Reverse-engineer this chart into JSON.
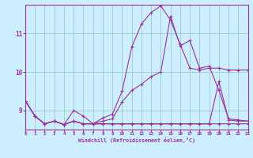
{
  "xlabel": "Windchill (Refroidissement éolien,°C)",
  "bg_color": "#cceeff",
  "grid_color": "#99cccc",
  "line_color": "#993399",
  "xlim": [
    0,
    23
  ],
  "ylim": [
    8.5,
    11.75
  ],
  "yticks": [
    9,
    10,
    11
  ],
  "xticks": [
    0,
    1,
    2,
    3,
    4,
    5,
    6,
    7,
    8,
    9,
    10,
    11,
    12,
    13,
    14,
    15,
    16,
    17,
    18,
    19,
    20,
    21,
    22,
    23
  ],
  "line1_x": [
    0,
    1,
    2,
    3,
    4,
    5,
    6,
    7,
    8,
    9,
    10,
    11,
    12,
    13,
    14,
    15,
    16,
    17,
    18,
    19,
    20,
    21,
    22,
    23
  ],
  "line1_y": [
    9.25,
    8.85,
    8.65,
    8.72,
    8.63,
    9.0,
    8.85,
    8.65,
    8.8,
    8.9,
    9.5,
    10.65,
    11.25,
    11.55,
    11.72,
    11.35,
    10.72,
    10.1,
    10.05,
    10.1,
    10.1,
    10.05,
    10.05,
    10.05
  ],
  "line2_x": [
    0,
    1,
    2,
    3,
    4,
    5,
    6,
    7,
    8,
    9,
    10,
    11,
    12,
    13,
    14,
    15,
    16,
    17,
    18,
    19,
    20,
    21,
    22,
    23
  ],
  "line2_y": [
    9.25,
    8.85,
    8.65,
    8.72,
    8.63,
    8.72,
    8.65,
    8.65,
    8.72,
    8.78,
    9.22,
    9.52,
    9.68,
    9.88,
    10.0,
    11.45,
    10.68,
    10.82,
    10.1,
    10.15,
    9.52,
    8.78,
    8.75,
    8.72
  ],
  "line3_x": [
    0,
    1,
    2,
    3,
    4,
    5,
    6,
    7,
    8,
    9,
    10,
    11,
    12,
    13,
    14,
    15,
    16,
    17,
    18,
    19,
    20,
    21,
    22,
    23
  ],
  "line3_y": [
    9.25,
    8.85,
    8.65,
    8.72,
    8.63,
    8.72,
    8.65,
    8.65,
    8.65,
    8.65,
    8.65,
    8.65,
    8.65,
    8.65,
    8.65,
    8.65,
    8.65,
    8.65,
    8.65,
    8.65,
    9.75,
    8.75,
    8.72,
    8.72
  ],
  "line4_x": [
    0,
    1,
    2,
    3,
    4,
    5,
    6,
    7,
    8,
    9,
    10,
    11,
    12,
    13,
    14,
    15,
    16,
    17,
    18,
    19,
    20,
    21,
    22,
    23
  ],
  "line4_y": [
    9.25,
    8.85,
    8.65,
    8.72,
    8.63,
    8.72,
    8.65,
    8.65,
    8.65,
    8.65,
    8.65,
    8.65,
    8.65,
    8.65,
    8.65,
    8.65,
    8.65,
    8.65,
    8.65,
    8.65,
    8.65,
    8.65,
    8.65,
    8.65
  ]
}
